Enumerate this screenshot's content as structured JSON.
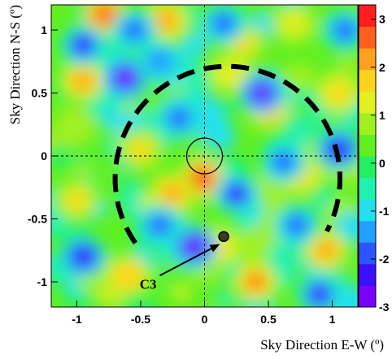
{
  "chart_data": {
    "type": "heatmap",
    "title": "",
    "xlabel": "Sky Direction E-W (º)",
    "ylabel": "Sky Direction N-S (º)",
    "xlim": [
      -1.2,
      1.2
    ],
    "ylim": [
      -1.2,
      1.2
    ],
    "x_ticks": [
      -1,
      -0.5,
      0,
      0.5,
      1
    ],
    "x_tick_labels": [
      "-1",
      "-0.5",
      "0",
      "0.5",
      "1"
    ],
    "y_ticks": [
      -1,
      -0.5,
      0,
      0.5,
      1
    ],
    "y_tick_labels": [
      "-1",
      "-0.5",
      "0",
      "0.5",
      "1"
    ],
    "colorbar": {
      "range": [
        -3,
        3.3
      ],
      "ticks": [
        -3,
        -2,
        -1,
        0,
        1,
        2,
        3
      ],
      "tick_labels": [
        "-3",
        "-2",
        "-1",
        "0",
        "1",
        "2",
        "3"
      ],
      "colors": [
        "#7a00ff",
        "#3b10ff",
        "#2b55ff",
        "#20a0ff",
        "#22e0f0",
        "#20f0b0",
        "#22f060",
        "#60f020",
        "#a0f020",
        "#e0f020",
        "#ffd21e",
        "#ffa01e",
        "#ff601e",
        "#ff1e1e"
      ]
    },
    "crosshair": {
      "x": 0,
      "y": 0
    },
    "small_circle": {
      "x": 0,
      "y": 0,
      "radius": 0.14
    },
    "dashed_arc": {
      "center_x": 0.18,
      "center_y": -0.18,
      "radius": 0.88
    },
    "source_marker": {
      "x": 0.15,
      "y": -0.64
    },
    "annotation": {
      "text": "C3",
      "arrow_from": {
        "x": -0.35,
        "y": -0.95
      },
      "arrow_to": {
        "x": 0.12,
        "y": -0.7
      }
    },
    "features": [
      {
        "x": -0.02,
        "y": -0.18,
        "value": 3.0
      },
      {
        "x": -0.78,
        "y": 1.12,
        "value": 2.6
      },
      {
        "x": -0.3,
        "y": 1.08,
        "value": 2.2
      },
      {
        "x": 0.5,
        "y": 0.38,
        "value": 2.2
      },
      {
        "x": -0.95,
        "y": 0.6,
        "value": 2.0
      },
      {
        "x": 0.4,
        "y": -1.0,
        "value": 2.4
      },
      {
        "x": -0.6,
        "y": -0.95,
        "value": 1.9
      },
      {
        "x": 0.75,
        "y": -0.15,
        "value": 1.8
      },
      {
        "x": 1.05,
        "y": 0.5,
        "value": 1.7
      },
      {
        "x": -0.25,
        "y": -0.3,
        "value": 2.0
      },
      {
        "x": 0.95,
        "y": -0.75,
        "value": 2.2
      },
      {
        "x": 0.1,
        "y": -0.72,
        "value": 1.8
      },
      {
        "x": -0.5,
        "y": 0.05,
        "value": 1.6
      },
      {
        "x": 0.3,
        "y": 0.9,
        "value": 1.5
      },
      {
        "x": -1.0,
        "y": -0.35,
        "value": 1.6
      },
      {
        "x": 0.7,
        "y": 1.05,
        "value": 1.4
      },
      {
        "x": -0.62,
        "y": 0.62,
        "value": -2.8
      },
      {
        "x": 0.45,
        "y": 0.5,
        "value": -2.6
      },
      {
        "x": -0.08,
        "y": -0.72,
        "value": -2.8
      },
      {
        "x": -0.95,
        "y": 0.88,
        "value": -2.2
      },
      {
        "x": 0.25,
        "y": -0.3,
        "value": -2.2
      },
      {
        "x": -0.2,
        "y": 0.3,
        "value": -2.0
      },
      {
        "x": 0.62,
        "y": -0.05,
        "value": -2.0
      },
      {
        "x": 1.05,
        "y": 0.05,
        "value": -2.3
      },
      {
        "x": -0.95,
        "y": -0.8,
        "value": -2.4
      },
      {
        "x": 0.9,
        "y": -1.1,
        "value": -2.2
      },
      {
        "x": -0.35,
        "y": -0.55,
        "value": -1.8
      },
      {
        "x": 0.15,
        "y": 1.05,
        "value": -2.0
      },
      {
        "x": -0.55,
        "y": 1.0,
        "value": -1.8
      },
      {
        "x": 0.72,
        "y": -0.55,
        "value": -1.9
      },
      {
        "x": 1.1,
        "y": 1.0,
        "value": -1.8
      },
      {
        "x": -0.35,
        "y": 0.75,
        "value": -1.6
      }
    ]
  }
}
